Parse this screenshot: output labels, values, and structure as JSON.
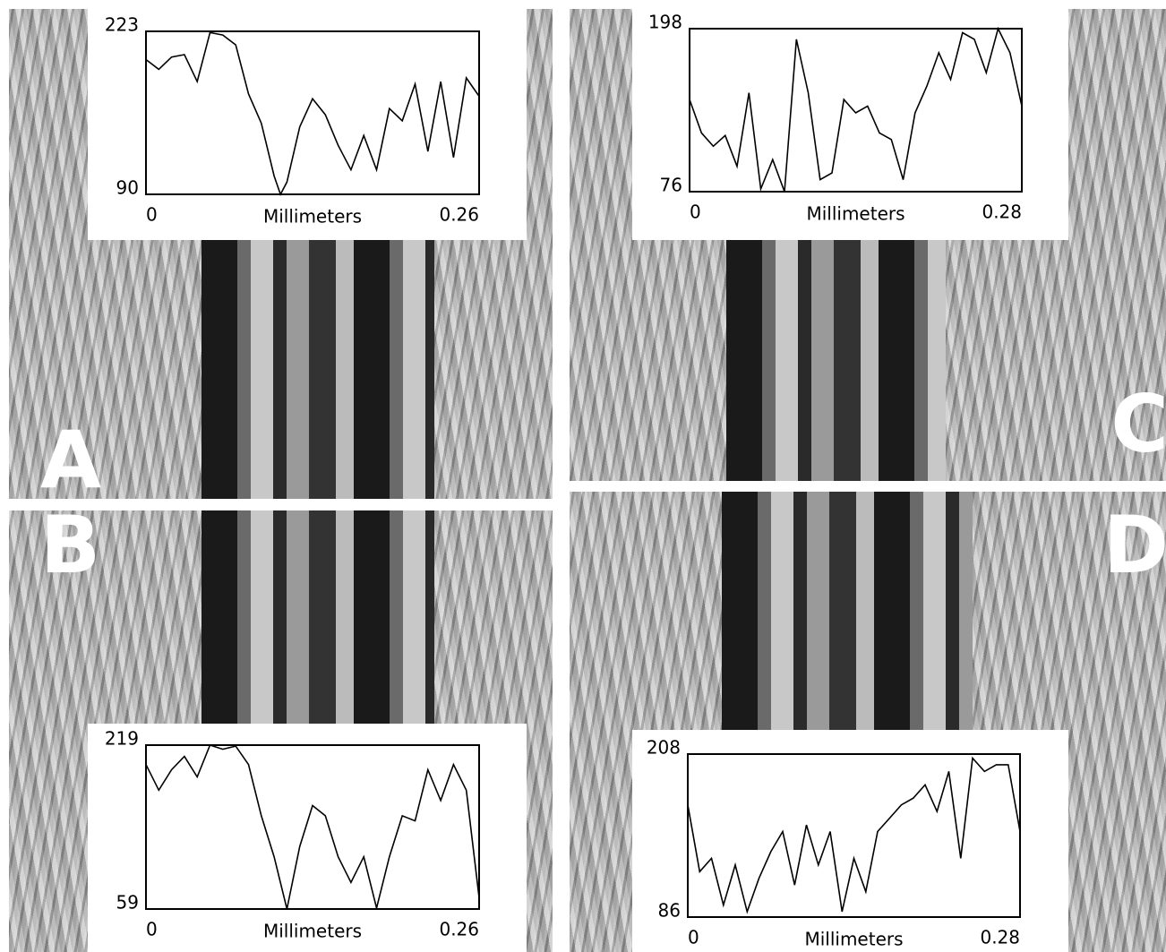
{
  "chart_data": [
    {
      "type": "line",
      "panel": "A",
      "xlabel": "Millimeters",
      "color": "#000000",
      "x": [
        0,
        0.01,
        0.02,
        0.03,
        0.04,
        0.05,
        0.06,
        0.07,
        0.08,
        0.09,
        0.1,
        0.105,
        0.11,
        0.12,
        0.13,
        0.14,
        0.15,
        0.16,
        0.17,
        0.18,
        0.19,
        0.2,
        0.21,
        0.22,
        0.23,
        0.24,
        0.25,
        0.26
      ],
      "values": [
        200,
        192,
        202,
        204,
        182,
        222,
        220,
        212,
        172,
        148,
        105,
        90,
        100,
        145,
        168,
        155,
        130,
        110,
        138,
        110,
        160,
        150,
        180,
        125,
        182,
        120,
        185,
        170
      ],
      "xlim": [
        0,
        0.26
      ],
      "xticks": [
        0,
        0.26
      ],
      "ylim": [
        90,
        223
      ],
      "yticks": [
        90,
        223
      ]
    },
    {
      "type": "line",
      "panel": "B",
      "xlabel": "Millimeters",
      "color": "#000000",
      "x": [
        0,
        0.01,
        0.02,
        0.03,
        0.04,
        0.05,
        0.06,
        0.07,
        0.08,
        0.09,
        0.1,
        0.11,
        0.12,
        0.13,
        0.14,
        0.15,
        0.16,
        0.17,
        0.18,
        0.19,
        0.2,
        0.21,
        0.22,
        0.23,
        0.24,
        0.25,
        0.26
      ],
      "values": [
        200,
        175,
        195,
        208,
        188,
        219,
        215,
        218,
        200,
        150,
        110,
        59,
        120,
        160,
        150,
        110,
        85,
        110,
        60,
        110,
        150,
        145,
        195,
        165,
        200,
        175,
        70
      ],
      "xlim": [
        0,
        0.26
      ],
      "xticks": [
        0,
        0.26
      ],
      "ylim": [
        59,
        219
      ],
      "yticks": [
        59,
        219
      ]
    },
    {
      "type": "line",
      "panel": "C",
      "xlabel": "Millimeters",
      "color": "#000000",
      "x": [
        0,
        0.01,
        0.02,
        0.03,
        0.04,
        0.05,
        0.06,
        0.07,
        0.08,
        0.09,
        0.1,
        0.11,
        0.12,
        0.13,
        0.14,
        0.15,
        0.16,
        0.17,
        0.18,
        0.19,
        0.2,
        0.21,
        0.22,
        0.23,
        0.24,
        0.25,
        0.26,
        0.27,
        0.28
      ],
      "values": [
        145,
        120,
        110,
        118,
        95,
        150,
        78,
        100,
        76,
        190,
        150,
        85,
        90,
        145,
        135,
        140,
        120,
        115,
        85,
        135,
        155,
        180,
        160,
        195,
        190,
        165,
        198,
        180,
        140
      ],
      "xlim": [
        0,
        0.28
      ],
      "xticks": [
        0,
        0.28
      ],
      "ylim": [
        76,
        198
      ],
      "yticks": [
        76,
        198
      ]
    },
    {
      "type": "line",
      "panel": "D",
      "xlabel": "Millimeters",
      "color": "#000000",
      "x": [
        0,
        0.01,
        0.02,
        0.03,
        0.04,
        0.05,
        0.06,
        0.07,
        0.08,
        0.09,
        0.1,
        0.11,
        0.12,
        0.13,
        0.14,
        0.15,
        0.16,
        0.17,
        0.18,
        0.19,
        0.2,
        0.21,
        0.22,
        0.23,
        0.24,
        0.25,
        0.26,
        0.27,
        0.28
      ],
      "values": [
        170,
        120,
        130,
        95,
        125,
        90,
        115,
        135,
        150,
        110,
        155,
        125,
        150,
        90,
        130,
        105,
        150,
        160,
        170,
        175,
        185,
        165,
        195,
        130,
        205,
        195,
        200,
        200,
        150
      ],
      "xlim": [
        0,
        0.28
      ],
      "xticks": [
        0,
        0.28
      ],
      "ylim": [
        86,
        208
      ],
      "yticks": [
        86,
        208
      ]
    }
  ]
}
